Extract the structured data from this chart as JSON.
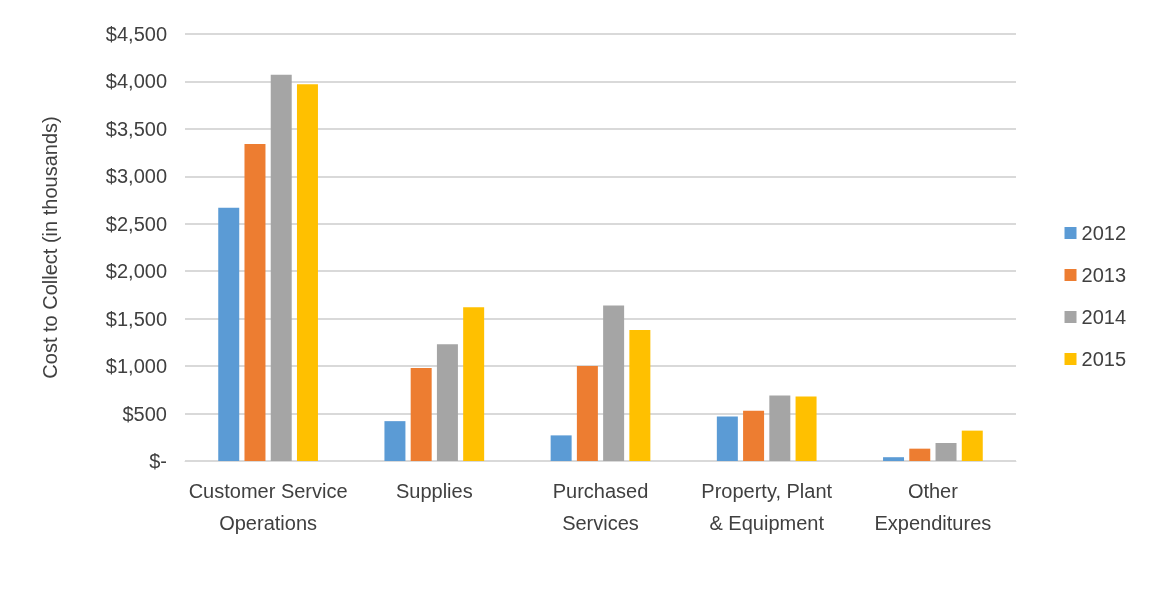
{
  "chart_data": {
    "type": "bar",
    "ylabel": "Cost to Collect (in thousands)",
    "categories": [
      "Customer Service Operations",
      "Supplies",
      "Purchased Services",
      "Property, Plant & Equipment",
      "Other Expenditures"
    ],
    "series": [
      {
        "name": "2012",
        "color": "#5b9bd5",
        "values": [
          2670,
          420,
          270,
          470,
          40
        ]
      },
      {
        "name": "2013",
        "color": "#ed7d31",
        "values": [
          3340,
          980,
          1000,
          530,
          130
        ]
      },
      {
        "name": "2014",
        "color": "#a5a5a5",
        "values": [
          4070,
          1230,
          1640,
          690,
          190
        ]
      },
      {
        "name": "2015",
        "color": "#ffc000",
        "values": [
          3970,
          1620,
          1380,
          680,
          320
        ]
      }
    ],
    "ylim": [
      0,
      4500
    ],
    "yticks": [
      {
        "value": 0,
        "label": "$-"
      },
      {
        "value": 500,
        "label": "$500"
      },
      {
        "value": 1000,
        "label": "$1,000"
      },
      {
        "value": 1500,
        "label": "$1,500"
      },
      {
        "value": 2000,
        "label": "$2,000"
      },
      {
        "value": 2500,
        "label": "$2,500"
      },
      {
        "value": 3000,
        "label": "$3,000"
      },
      {
        "value": 3500,
        "label": "$3,500"
      },
      {
        "value": 4000,
        "label": "$4,000"
      },
      {
        "value": 4500,
        "label": "$4,500"
      }
    ],
    "grid": "y",
    "legend": "right"
  }
}
